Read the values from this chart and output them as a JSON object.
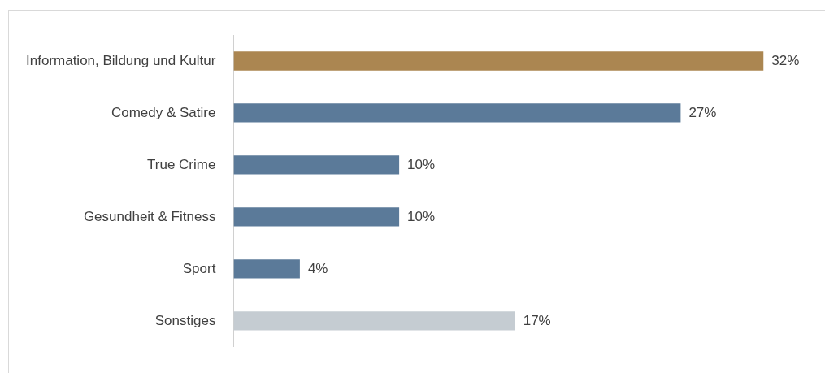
{
  "chart_data": {
    "type": "bar",
    "orientation": "horizontal",
    "categories": [
      "Information, Bildung und Kultur",
      "Comedy & Satire",
      "True Crime",
      "Gesundheit & Fitness",
      "Sport",
      "Sonstiges"
    ],
    "values": [
      32,
      27,
      10,
      10,
      4,
      17
    ],
    "value_labels": [
      "32%",
      "27%",
      "10%",
      "10%",
      "4%",
      "17%"
    ],
    "colors": [
      "#ab8651",
      "#5b7a99",
      "#5b7a99",
      "#5b7a99",
      "#5b7a99",
      "#c5ccd2"
    ],
    "legend": false
  }
}
